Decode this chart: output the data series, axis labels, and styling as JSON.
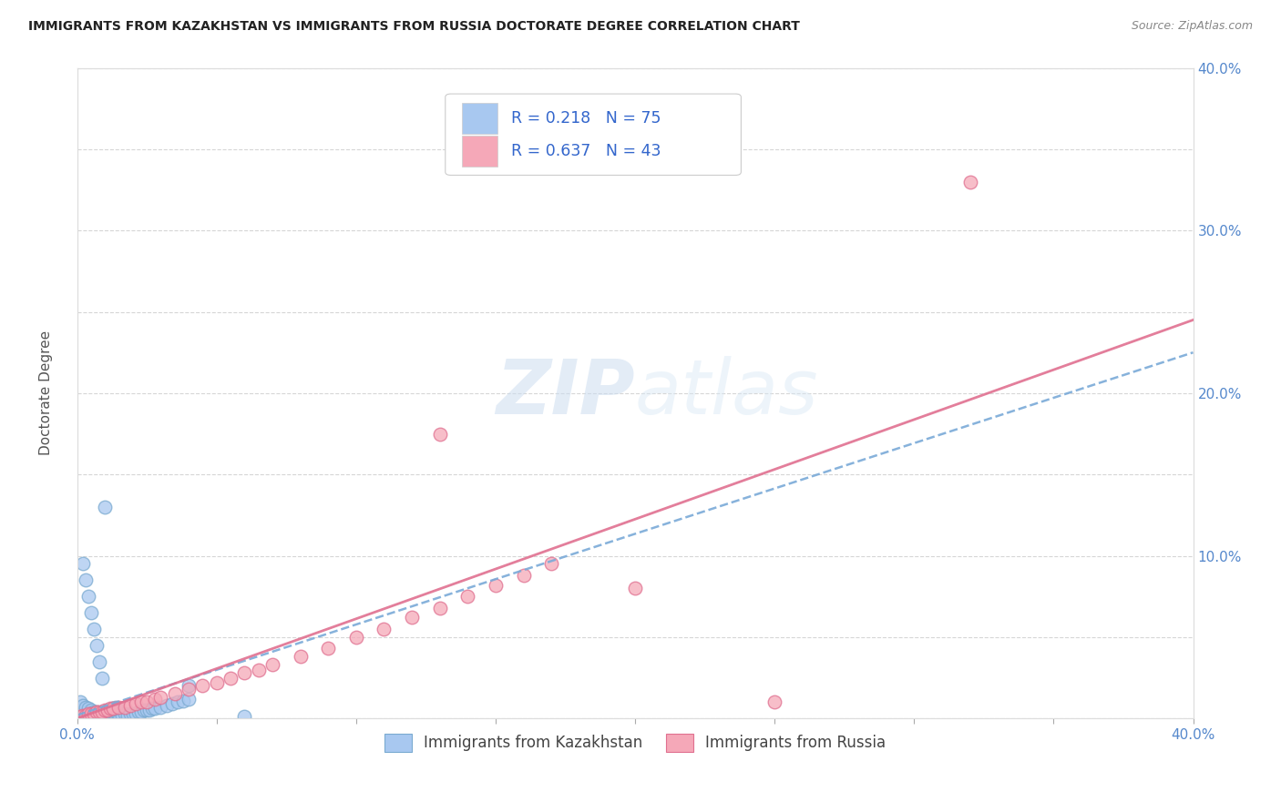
{
  "title": "IMMIGRANTS FROM KAZAKHSTAN VS IMMIGRANTS FROM RUSSIA DOCTORATE DEGREE CORRELATION CHART",
  "source": "Source: ZipAtlas.com",
  "ylabel": "Doctorate Degree",
  "xlim": [
    0.0,
    0.4
  ],
  "ylim": [
    0.0,
    0.4
  ],
  "x_ticks": [
    0.0,
    0.05,
    0.1,
    0.15,
    0.2,
    0.25,
    0.3,
    0.35,
    0.4
  ],
  "y_ticks": [
    0.0,
    0.05,
    0.1,
    0.15,
    0.2,
    0.25,
    0.3,
    0.35,
    0.4
  ],
  "kazakhstan_color": "#a8c8f0",
  "kazakhstan_edge_color": "#7aaad0",
  "russia_color": "#f5a8b8",
  "russia_edge_color": "#e07090",
  "kazakhstan_line_color": "#7aaad8",
  "russia_line_color": "#e07090",
  "tick_color": "#5588cc",
  "R_kazakhstan": 0.218,
  "N_kazakhstan": 75,
  "R_russia": 0.637,
  "N_russia": 43,
  "watermark": "ZIPatlas",
  "legend_label_kaz": "Immigrants from Kazakhstan",
  "legend_label_rus": "Immigrants from Russia",
  "kaz_line_x0": 0.0,
  "kaz_line_y0": 0.002,
  "kaz_line_x1": 0.4,
  "kaz_line_y1": 0.225,
  "rus_line_x0": 0.0,
  "rus_line_y0": 0.0,
  "rus_line_x1": 0.4,
  "rus_line_y1": 0.245,
  "kazakhstan_x": [
    0.001,
    0.002,
    0.002,
    0.003,
    0.003,
    0.003,
    0.004,
    0.004,
    0.004,
    0.005,
    0.005,
    0.005,
    0.006,
    0.006,
    0.007,
    0.007,
    0.008,
    0.008,
    0.009,
    0.009,
    0.01,
    0.01,
    0.011,
    0.011,
    0.012,
    0.012,
    0.013,
    0.013,
    0.014,
    0.015,
    0.015,
    0.016,
    0.017,
    0.018,
    0.019,
    0.02,
    0.021,
    0.022,
    0.023,
    0.024,
    0.025,
    0.026,
    0.027,
    0.028,
    0.03,
    0.032,
    0.034,
    0.036,
    0.038,
    0.04,
    0.001,
    0.002,
    0.003,
    0.004,
    0.005,
    0.006,
    0.007,
    0.008,
    0.009,
    0.01,
    0.011,
    0.012,
    0.013,
    0.014,
    0.002,
    0.003,
    0.004,
    0.005,
    0.006,
    0.007,
    0.008,
    0.009,
    0.01,
    0.04,
    0.06
  ],
  "kazakhstan_y": [
    0.001,
    0.001,
    0.002,
    0.001,
    0.002,
    0.003,
    0.001,
    0.002,
    0.003,
    0.001,
    0.002,
    0.003,
    0.001,
    0.002,
    0.001,
    0.002,
    0.001,
    0.002,
    0.001,
    0.003,
    0.001,
    0.002,
    0.001,
    0.002,
    0.001,
    0.003,
    0.001,
    0.002,
    0.002,
    0.001,
    0.003,
    0.002,
    0.003,
    0.002,
    0.003,
    0.003,
    0.003,
    0.004,
    0.004,
    0.005,
    0.005,
    0.005,
    0.006,
    0.006,
    0.007,
    0.008,
    0.009,
    0.01,
    0.011,
    0.012,
    0.01,
    0.008,
    0.007,
    0.006,
    0.005,
    0.004,
    0.004,
    0.003,
    0.004,
    0.004,
    0.005,
    0.005,
    0.006,
    0.007,
    0.095,
    0.085,
    0.075,
    0.065,
    0.055,
    0.045,
    0.035,
    0.025,
    0.13,
    0.02,
    0.001
  ],
  "russia_x": [
    0.001,
    0.002,
    0.003,
    0.004,
    0.005,
    0.006,
    0.007,
    0.008,
    0.009,
    0.01,
    0.011,
    0.012,
    0.013,
    0.015,
    0.017,
    0.019,
    0.021,
    0.023,
    0.025,
    0.028,
    0.03,
    0.035,
    0.04,
    0.045,
    0.05,
    0.055,
    0.06,
    0.065,
    0.07,
    0.08,
    0.09,
    0.1,
    0.11,
    0.12,
    0.13,
    0.14,
    0.15,
    0.16,
    0.17,
    0.2,
    0.25,
    0.32,
    0.13
  ],
  "russia_y": [
    0.001,
    0.002,
    0.002,
    0.003,
    0.003,
    0.003,
    0.004,
    0.004,
    0.004,
    0.005,
    0.005,
    0.006,
    0.006,
    0.007,
    0.007,
    0.008,
    0.009,
    0.01,
    0.01,
    0.012,
    0.013,
    0.015,
    0.018,
    0.02,
    0.022,
    0.025,
    0.028,
    0.03,
    0.033,
    0.038,
    0.043,
    0.05,
    0.055,
    0.062,
    0.068,
    0.075,
    0.082,
    0.088,
    0.095,
    0.08,
    0.01,
    0.33,
    0.175
  ]
}
